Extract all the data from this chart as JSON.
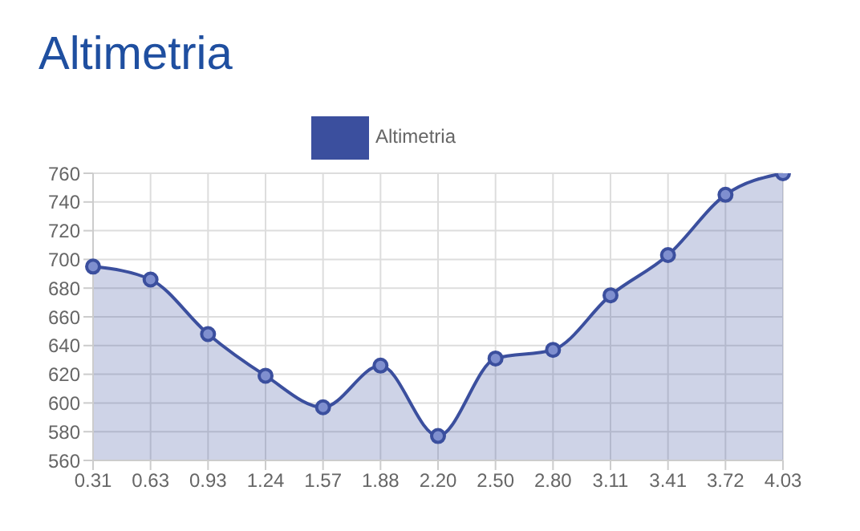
{
  "chart_data": {
    "type": "area",
    "title": "Altimetria",
    "categories": [
      "0.31",
      "0.63",
      "0.93",
      "1.24",
      "1.57",
      "1.88",
      "2.20",
      "2.50",
      "2.80",
      "3.11",
      "3.41",
      "3.72",
      "4.03"
    ],
    "series": [
      {
        "name": "Altimetria",
        "color": "#3b4f9e",
        "values": [
          695,
          686,
          648,
          619,
          597,
          626,
          577,
          631,
          637,
          675,
          703,
          745,
          760
        ]
      }
    ],
    "ylim": [
      560,
      760
    ],
    "yticks": [
      560,
      580,
      600,
      620,
      640,
      660,
      680,
      700,
      720,
      740,
      760
    ],
    "grid": true,
    "legend": "top",
    "marker": "circle",
    "line_style": "solid"
  }
}
